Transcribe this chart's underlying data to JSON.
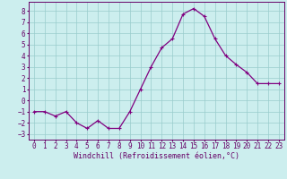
{
  "x": [
    0,
    1,
    2,
    3,
    4,
    5,
    6,
    7,
    8,
    9,
    10,
    11,
    12,
    13,
    14,
    15,
    16,
    17,
    18,
    19,
    20,
    21,
    22,
    23
  ],
  "y": [
    -1,
    -1,
    -1.4,
    -1,
    -2,
    -2.5,
    -1.8,
    -2.5,
    -2.5,
    -1,
    1,
    3,
    4.7,
    5.5,
    7.7,
    8.2,
    7.5,
    5.5,
    4,
    3.2,
    2.5,
    1.5,
    1.5,
    1.5
  ],
  "line_color": "#800080",
  "marker": "+",
  "markersize": 3,
  "linewidth": 0.9,
  "xlabel": "Windchill (Refroidissement éolien,°C)",
  "xlabel_fontsize": 6,
  "bg_color": "#cceeee",
  "grid_color": "#99cccc",
  "yticks": [
    -3,
    -2,
    -1,
    0,
    1,
    2,
    3,
    4,
    5,
    6,
    7,
    8
  ],
  "xticks": [
    0,
    1,
    2,
    3,
    4,
    5,
    6,
    7,
    8,
    9,
    10,
    11,
    12,
    13,
    14,
    15,
    16,
    17,
    18,
    19,
    20,
    21,
    22,
    23
  ],
  "ylim": [
    -3.5,
    8.8
  ],
  "xlim": [
    -0.5,
    23.5
  ],
  "tick_fontsize": 5.5,
  "tick_color": "#660066",
  "spine_color": "#660066"
}
